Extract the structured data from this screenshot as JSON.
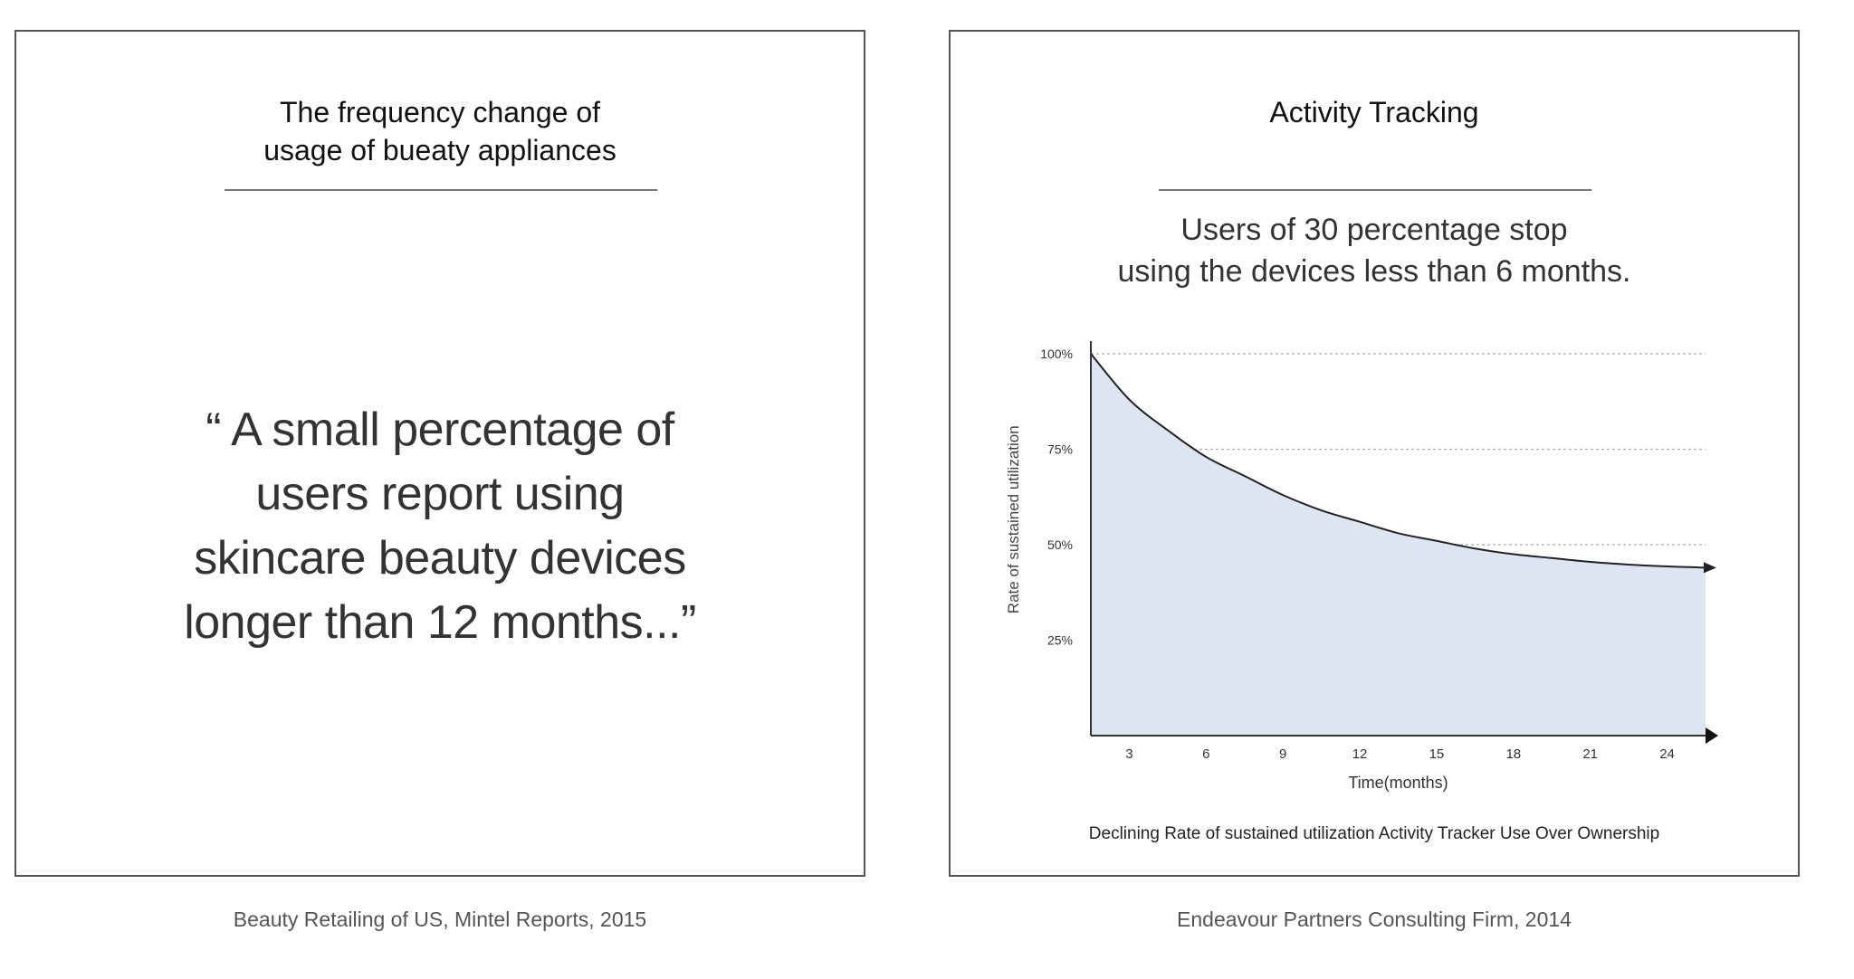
{
  "left_panel": {
    "title_line1": "The frequency change of",
    "title_line2": "usage of bueaty appliances",
    "quote_lines": [
      "“ A small percentage of",
      "users report using",
      "skincare beauty devices",
      "longer than 12 months...”"
    ],
    "source": "Beauty Retailing of US, Mintel Reports, 2015"
  },
  "right_panel": {
    "title": "Activity Tracking",
    "subtitle_line1": "Users of 30 percentage stop",
    "subtitle_line2": "using the devices less than 6 months.",
    "source": "Endeavour Partners Consulting Firm, 2014"
  },
  "colors": {
    "area_fill": "#dce5f1",
    "line": "#222222",
    "grid": "#aaaaaa",
    "border": "#555555"
  },
  "chart_data": {
    "type": "area",
    "title": "Declining Rate of sustained utilization Activity Tracker Use Over Ownership",
    "xlabel": "Time(months)",
    "ylabel": "Rate of sustained utilization",
    "x_ticks": [
      3,
      6,
      9,
      12,
      15,
      18,
      21,
      24
    ],
    "y_ticks": [
      25,
      50,
      75,
      100
    ],
    "y_tick_labels": [
      "25%",
      "50%",
      "75%",
      "100%"
    ],
    "xlim": [
      1.5,
      25.5
    ],
    "ylim": [
      0,
      100
    ],
    "grid": "horizontal-dotted",
    "series": [
      {
        "name": "Rate of sustained utilization",
        "x": [
          1.5,
          3,
          4.5,
          6,
          7.5,
          9,
          10.5,
          12,
          13.5,
          15,
          16.5,
          18,
          19.5,
          21,
          22.5,
          24,
          25.5
        ],
        "y": [
          100,
          88,
          80,
          73,
          68,
          63,
          59,
          56,
          53,
          51,
          49,
          47.5,
          46.5,
          45.5,
          44.8,
          44.3,
          44
        ]
      }
    ]
  }
}
